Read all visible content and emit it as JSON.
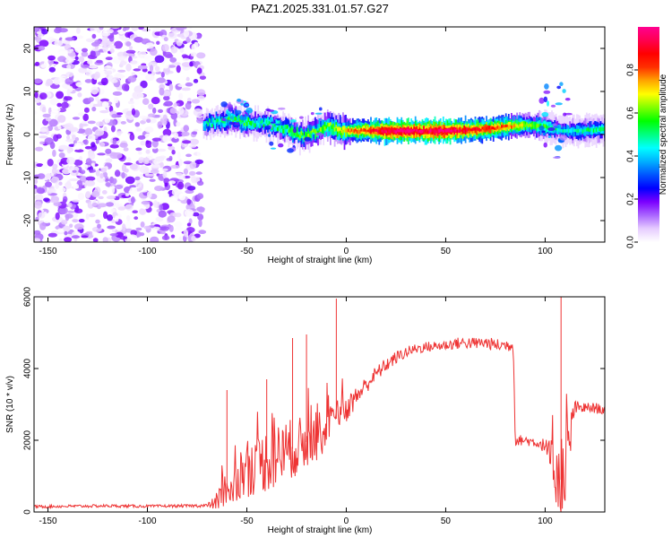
{
  "title": "PAZ1.2025.331.01.57.G27",
  "colors": {
    "snr_line": "#ee3333",
    "frame": "#000000",
    "background": "#ffffff"
  },
  "chart_data": [
    {
      "type": "heatmap",
      "name": "spectrogram",
      "xlabel": "Height of straight line (km)",
      "ylabel": "Frequency (Hz)",
      "xlim": [
        -157,
        130
      ],
      "ylim": [
        -25,
        25
      ],
      "xticks": [
        -150,
        -100,
        -50,
        0,
        50,
        100
      ],
      "yticks": [
        -20,
        -10,
        0,
        10,
        20
      ],
      "xtick_labels": [
        "-150",
        "-100",
        "-50",
        "0",
        "50",
        "100"
      ],
      "ytick_labels": [
        "-20",
        "-10",
        "0",
        "10",
        "20"
      ],
      "noise_region_km": [
        -157,
        -72
      ],
      "noise_amplitude_range": [
        0.0,
        0.2
      ],
      "ridge": [
        {
          "x": -72,
          "f": 2.5,
          "amp": 0.45
        },
        {
          "x": -65,
          "f": 2.8,
          "amp": 0.5
        },
        {
          "x": -58,
          "f": 3.5,
          "amp": 0.55
        },
        {
          "x": -52,
          "f": 3.0,
          "amp": 0.55
        },
        {
          "x": -45,
          "f": 2.6,
          "amp": 0.5
        },
        {
          "x": -38,
          "f": 2.2,
          "amp": 0.5
        },
        {
          "x": -30,
          "f": 1.2,
          "amp": 0.55
        },
        {
          "x": -22,
          "f": -0.5,
          "amp": 0.6
        },
        {
          "x": -15,
          "f": 0.8,
          "amp": 0.6
        },
        {
          "x": -10,
          "f": 2.2,
          "amp": 0.6
        },
        {
          "x": -5,
          "f": 1.2,
          "amp": 0.65
        },
        {
          "x": 0,
          "f": 0.8,
          "amp": 0.75
        },
        {
          "x": 10,
          "f": 0.9,
          "amp": 0.85
        },
        {
          "x": 20,
          "f": 0.8,
          "amp": 0.95
        },
        {
          "x": 30,
          "f": 0.8,
          "amp": 1.0
        },
        {
          "x": 40,
          "f": 0.8,
          "amp": 0.95
        },
        {
          "x": 50,
          "f": 0.8,
          "amp": 1.0
        },
        {
          "x": 60,
          "f": 1.0,
          "amp": 0.9
        },
        {
          "x": 70,
          "f": 1.3,
          "amp": 0.85
        },
        {
          "x": 80,
          "f": 1.8,
          "amp": 0.8
        },
        {
          "x": 90,
          "f": 2.2,
          "amp": 0.65
        },
        {
          "x": 100,
          "f": 1.8,
          "amp": 0.55
        },
        {
          "x": 108,
          "f": 1.0,
          "amp": 0.45
        },
        {
          "x": 115,
          "f": 0.8,
          "amp": 0.45
        },
        {
          "x": 122,
          "f": 1.0,
          "amp": 0.5
        },
        {
          "x": 130,
          "f": 1.2,
          "amp": 0.5
        }
      ]
    },
    {
      "type": "line",
      "name": "snr",
      "xlabel": "Height of straight line (km)",
      "ylabel": "SNR (10 * v/v)",
      "xlim": [
        -157,
        130
      ],
      "ylim": [
        0,
        6000
      ],
      "xticks": [
        -150,
        -100,
        -50,
        0,
        50,
        100
      ],
      "yticks": [
        0,
        2000,
        4000,
        6000
      ],
      "xtick_labels": [
        "-150",
        "-100",
        "-50",
        "0",
        "50",
        "100"
      ],
      "ytick_labels": [
        "0",
        "2000",
        "4000",
        "6000"
      ],
      "x": [
        -157,
        -140,
        -120,
        -100,
        -80,
        -70,
        -66,
        -62,
        -58,
        -54,
        -50,
        -45,
        -40,
        -35,
        -30,
        -25,
        -20,
        -15,
        -10,
        -5,
        0,
        5,
        10,
        15,
        20,
        25,
        30,
        35,
        40,
        45,
        50,
        55,
        60,
        65,
        70,
        75,
        80,
        84,
        85,
        90,
        95,
        100,
        103,
        106,
        108,
        110,
        112,
        114,
        116,
        120,
        125,
        130
      ],
      "y": [
        150,
        160,
        170,
        160,
        170,
        180,
        250,
        500,
        800,
        1000,
        1200,
        1300,
        1450,
        1550,
        1700,
        1800,
        1950,
        2100,
        2300,
        2600,
        2900,
        3200,
        3550,
        3850,
        4100,
        4300,
        4450,
        4550,
        4600,
        4620,
        4650,
        4700,
        4720,
        4700,
        4720,
        4650,
        4650,
        4650,
        2000,
        2000,
        1950,
        1850,
        1400,
        1100,
        900,
        900,
        1500,
        2800,
        2900,
        2900,
        2900,
        2850
      ],
      "noise_amplitude": [
        40,
        40,
        40,
        40,
        40,
        50,
        200,
        500,
        700,
        800,
        800,
        800,
        900,
        900,
        900,
        800,
        800,
        700,
        600,
        500,
        400,
        300,
        250,
        220,
        200,
        180,
        160,
        150,
        150,
        150,
        150,
        160,
        170,
        170,
        170,
        180,
        180,
        180,
        150,
        150,
        150,
        200,
        600,
        1000,
        1300,
        1200,
        1000,
        300,
        200,
        150,
        150,
        150
      ],
      "spikes": [
        {
          "x": -60,
          "y": 3400
        },
        {
          "x": -40,
          "y": 3700
        },
        {
          "x": -27,
          "y": 4850
        },
        {
          "x": -20,
          "y": 4950
        },
        {
          "x": -5,
          "y": 5950
        },
        {
          "x": 108,
          "y": 6000
        }
      ]
    }
  ],
  "colorbar": {
    "label": "Normalized spectral amplitude",
    "ticks": [
      0.0,
      0.2,
      0.4,
      0.6,
      0.8
    ],
    "tick_labels": [
      "0.0",
      "0.2",
      "0.4",
      "0.6",
      "0.8"
    ],
    "range": [
      0,
      1
    ],
    "stops": [
      "#ffffff",
      "#e6ccff",
      "#aa66ff",
      "#7b00ff",
      "#0000ff",
      "#0055ff",
      "#00b0ff",
      "#00ffff",
      "#00ff80",
      "#00ff00",
      "#80ff00",
      "#ffff00",
      "#ffa500",
      "#ff3000",
      "#ff0000",
      "#ff0050",
      "#ff0090"
    ]
  }
}
